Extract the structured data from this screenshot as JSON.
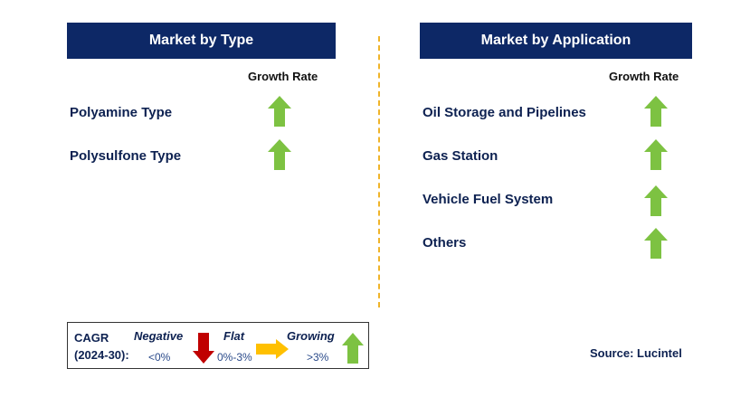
{
  "left_panel": {
    "title": "Market by Type",
    "growth_rate_label": "Growth Rate",
    "items": [
      {
        "label": "Polyamine Type",
        "trend": "growing"
      },
      {
        "label": "Polysulfone Type",
        "trend": "growing"
      }
    ]
  },
  "right_panel": {
    "title": "Market by Application",
    "growth_rate_label": "Growth Rate",
    "items": [
      {
        "label": "Oil Storage and Pipelines",
        "trend": "growing"
      },
      {
        "label": "Gas Station",
        "trend": "growing"
      },
      {
        "label": "Vehicle Fuel System",
        "trend": "growing"
      },
      {
        "label": "Others",
        "trend": "growing"
      }
    ]
  },
  "legend": {
    "cagr_label": "CAGR",
    "period_label": "(2024-30):",
    "negative": {
      "label": "Negative",
      "range": "<0%"
    },
    "flat": {
      "label": "Flat",
      "range": "0%-3%"
    },
    "growing": {
      "label": "Growing",
      "range": ">3%"
    }
  },
  "source": "Source: Lucintel",
  "colors": {
    "header_bg": "#0d2866",
    "growing": "#7dc242",
    "negative": "#c00000",
    "flat": "#ffc000",
    "divider": "#f0b429"
  }
}
